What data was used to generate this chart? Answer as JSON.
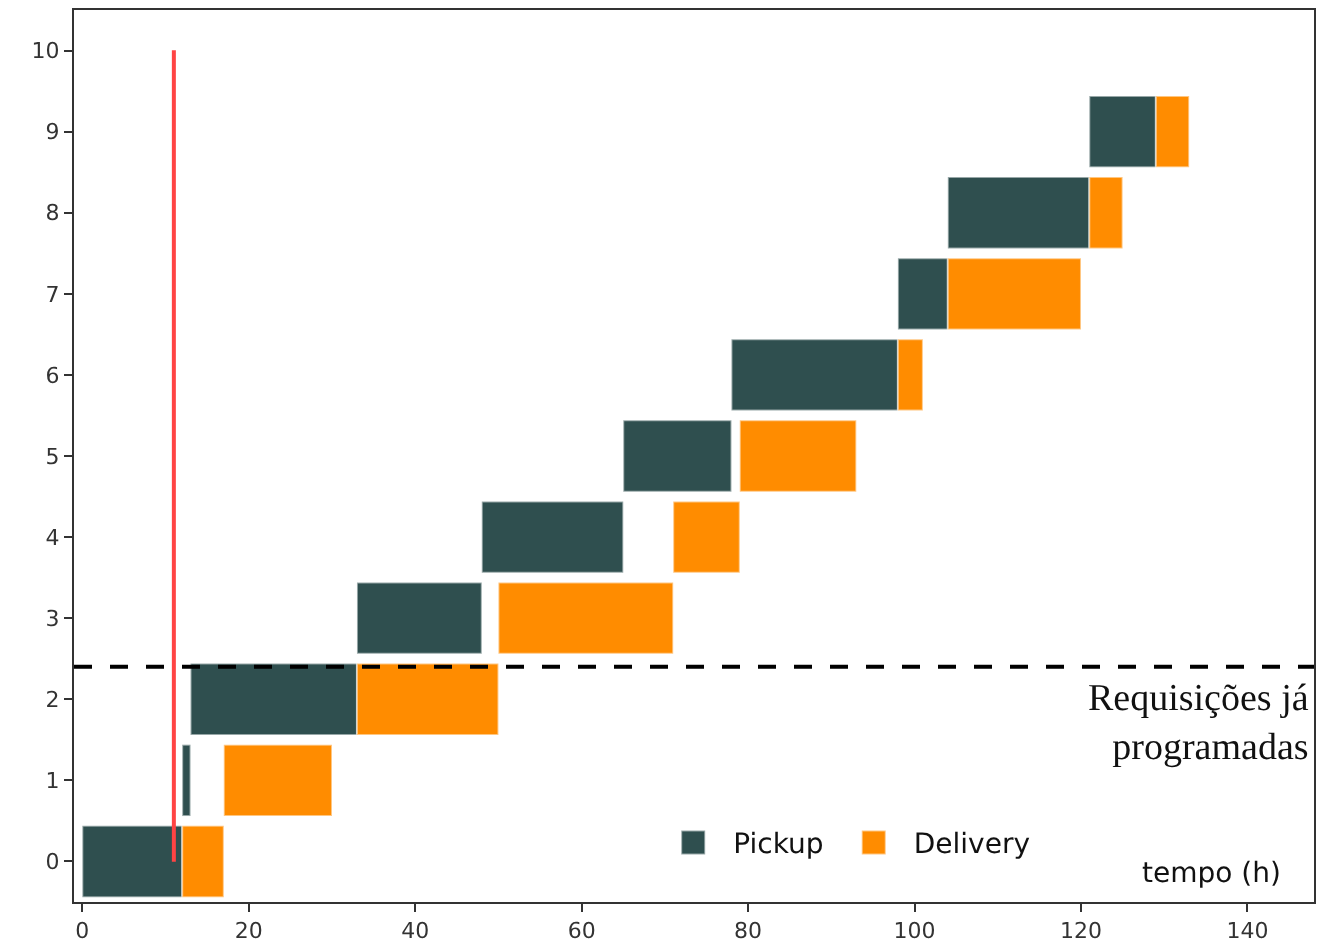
{
  "chart_data": {
    "type": "bar",
    "orientation": "horizontal",
    "xlabel": "tempo (h)",
    "x": [
      0,
      1,
      2,
      3,
      4,
      5,
      6,
      7,
      8,
      9
    ],
    "series": [
      {
        "name": "Pickup",
        "color": "#2f4f4f",
        "base": [
          0,
          12,
          13,
          33,
          48,
          65,
          78,
          98,
          104,
          121
        ],
        "values": [
          12,
          1,
          20,
          15,
          17,
          13,
          20,
          6,
          17,
          8
        ]
      },
      {
        "name": "Delivery",
        "color": "#ff8c00",
        "base": [
          12,
          17,
          33,
          50,
          71,
          79,
          98,
          104,
          121,
          129
        ],
        "values": [
          5,
          13,
          17,
          21,
          8,
          14,
          3,
          16,
          4,
          4
        ]
      }
    ],
    "xlim": [
      -1,
      148
    ],
    "xticks": [
      0,
      20,
      40,
      60,
      80,
      100,
      120,
      140
    ],
    "ylim": [
      -0.5,
      10.5
    ],
    "yticks": [
      0,
      1,
      2,
      3,
      4,
      5,
      6,
      7,
      8,
      9,
      10
    ],
    "ref_lines": [
      {
        "axis": "x",
        "value": 11,
        "color": "#ff4444",
        "line_style": "solid"
      },
      {
        "axis": "y",
        "value": 2.4,
        "color": "#000000",
        "line_style": "dashed",
        "label": "Requisições já\nprogramadas"
      }
    ],
    "grid": false,
    "legend": "bottom right"
  }
}
